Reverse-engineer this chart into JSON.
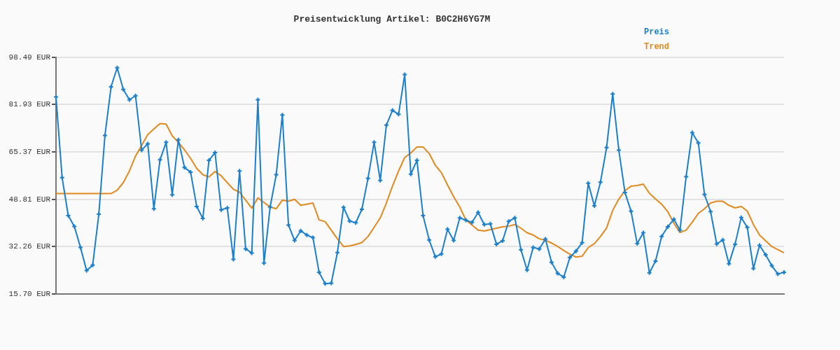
{
  "chart_data": {
    "type": "line",
    "title": "Preisentwicklung Artikel: B0C2H6YG7M",
    "categories": [
      null,
      null,
      null,
      null,
      null,
      null,
      null,
      null,
      null,
      null,
      null,
      null,
      null,
      null,
      null,
      null,
      null,
      null,
      null,
      null,
      null,
      null,
      null,
      null,
      null,
      null,
      null,
      null,
      null,
      null,
      null,
      null,
      null,
      null,
      null,
      null,
      null,
      null,
      null,
      null,
      null,
      null,
      null,
      null,
      null,
      null,
      null,
      null,
      null,
      null,
      null,
      null,
      null,
      null,
      null,
      null,
      null,
      null,
      null,
      null,
      null,
      null,
      null,
      null,
      null,
      null,
      null,
      null,
      null,
      null,
      null,
      null,
      null,
      null,
      null,
      null,
      null,
      null,
      null,
      null,
      null,
      null,
      null,
      null,
      null,
      null,
      null,
      null,
      null,
      null,
      null,
      null,
      null,
      null,
      null,
      null,
      null,
      null,
      null,
      null,
      null,
      null,
      null,
      null,
      null,
      null,
      null,
      null,
      null,
      null,
      null,
      null,
      null,
      null,
      null,
      null,
      null,
      null,
      null,
      null
    ],
    "series": [
      {
        "name": "Preis",
        "color": "#1a7fcc",
        "marker": "cross",
        "values": [
          84.6,
          56.4,
          43.1,
          39.3,
          32.0,
          23.9,
          25.8,
          43.6,
          71.1,
          88.1,
          94.8,
          87.2,
          83.6,
          85.0,
          66.0,
          68.2,
          45.5,
          62.6,
          68.7,
          50.4,
          69.6,
          59.9,
          58.3,
          46.3,
          42.1,
          62.4,
          65.1,
          45.1,
          45.8,
          27.8,
          58.7,
          31.5,
          30.0,
          83.6,
          26.5,
          46.1,
          57.4,
          78.3,
          39.8,
          34.4,
          37.8,
          36.3,
          35.4,
          23.3,
          19.3,
          19.5,
          30.2,
          46.0,
          41.2,
          40.6,
          45.3,
          56.1,
          68.7,
          55.4,
          74.7,
          79.9,
          78.5,
          92.4,
          57.6,
          62.4,
          43.1,
          34.6,
          28.7,
          29.7,
          38.3,
          34.4,
          42.3,
          41.5,
          40.7,
          44.2,
          40.0,
          40.2,
          33.1,
          34.3,
          41.1,
          42.3,
          31.2,
          24.1,
          32.0,
          31.4,
          34.9,
          26.8,
          22.9,
          21.6,
          28.5,
          30.7,
          33.6,
          54.4,
          46.5,
          54.8,
          66.9,
          85.6,
          66.0,
          51.2,
          44.6,
          33.3,
          37.1,
          23.1,
          27.2,
          35.8,
          39.2,
          41.8,
          38.0,
          56.7,
          72.1,
          68.5,
          50.5,
          44.5,
          33.2,
          34.6,
          26.3,
          33.1,
          42.4,
          39.0,
          24.6,
          32.7,
          29.4,
          25.6,
          22.7,
          23.3
        ]
      },
      {
        "name": "Trend",
        "color": "#e08a1e",
        "marker": "none",
        "values": [
          50.8,
          50.8,
          50.8,
          50.8,
          50.8,
          50.8,
          50.8,
          50.8,
          50.8,
          50.8,
          52.0,
          54.6,
          58.7,
          63.9,
          67.6,
          71.4,
          73.4,
          75.3,
          75.1,
          71.0,
          68.7,
          66.1,
          63.1,
          59.6,
          57.4,
          56.6,
          58.5,
          57.0,
          54.6,
          52.3,
          51.3,
          48.5,
          45.7,
          49.3,
          47.7,
          46.1,
          45.5,
          48.5,
          48.1,
          48.8,
          46.7,
          47.1,
          47.5,
          41.6,
          41.0,
          38.0,
          35.0,
          32.3,
          32.5,
          33.0,
          33.7,
          35.8,
          39.0,
          42.3,
          47.5,
          53.4,
          58.7,
          63.4,
          65.0,
          67.1,
          67.1,
          64.8,
          60.7,
          58.1,
          53.8,
          49.7,
          46.1,
          41.6,
          39.8,
          38.0,
          37.7,
          38.2,
          38.7,
          39.2,
          39.4,
          40.0,
          38.7,
          37.1,
          36.3,
          35.0,
          34.5,
          33.5,
          32.3,
          30.9,
          29.6,
          28.6,
          28.9,
          31.9,
          33.3,
          35.8,
          38.8,
          44.9,
          48.9,
          51.8,
          53.4,
          53.6,
          54.1,
          50.9,
          48.9,
          47.1,
          44.5,
          40.4,
          37.2,
          38.0,
          40.8,
          43.9,
          45.5,
          47.5,
          48.1,
          48.1,
          46.7,
          45.8,
          46.3,
          44.7,
          40.0,
          36.3,
          34.3,
          32.3,
          31.2,
          30.1
        ]
      }
    ],
    "ylim": [
      15.7,
      98.49
    ],
    "yticks": [
      {
        "value": 15.7,
        "label": "15.70 EUR"
      },
      {
        "value": 32.26,
        "label": "32.26 EUR"
      },
      {
        "value": 48.81,
        "label": "48.81 EUR"
      },
      {
        "value": 65.37,
        "label": "65.37 EUR"
      },
      {
        "value": 81.93,
        "label": "81.93 EUR"
      },
      {
        "value": 98.49,
        "label": "98.49 EUR"
      }
    ],
    "grid": "y",
    "legend": "top right"
  }
}
